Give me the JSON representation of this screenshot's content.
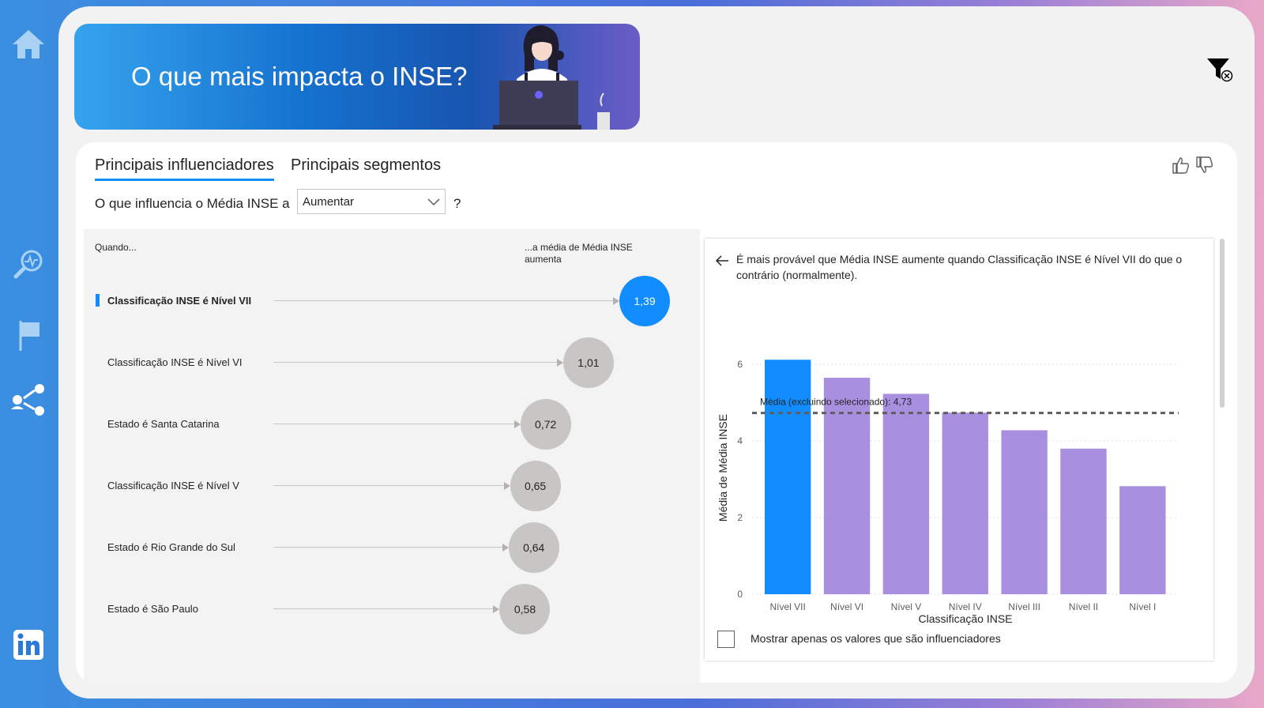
{
  "banner": {
    "title": "O que mais impacta o INSE?"
  },
  "sidebar": {
    "items": [
      {
        "name": "home-icon"
      },
      {
        "name": "analysis-icon"
      },
      {
        "name": "flag-icon"
      },
      {
        "name": "share-users-icon"
      },
      {
        "name": "linkedin-icon"
      }
    ]
  },
  "tabs": [
    {
      "label": "Principais influenciadores",
      "active": true
    },
    {
      "label": "Principais segmentos",
      "active": false
    }
  ],
  "question": {
    "prefix": "O que influencia o Média INSE a",
    "selected": "Aumentar",
    "suffix": "?"
  },
  "influencers": {
    "header_left": "Quando...",
    "header_right": "...a média de Média INSE aumenta",
    "rows": [
      {
        "label": "Classificação INSE é Nível VII",
        "value": "1,39",
        "num": 1.39,
        "selected": true
      },
      {
        "label": "Classificação INSE é Nível VI",
        "value": "1,01",
        "num": 1.01,
        "selected": false
      },
      {
        "label": "Estado é Santa Catarina",
        "value": "0,72",
        "num": 0.72,
        "selected": false
      },
      {
        "label": "Classificação INSE é Nível V",
        "value": "0,65",
        "num": 0.65,
        "selected": false
      },
      {
        "label": "Estado é Rio Grande do Sul",
        "value": "0,64",
        "num": 0.64,
        "selected": false
      },
      {
        "label": "Estado é São Paulo",
        "value": "0,58",
        "num": 0.58,
        "selected": false
      }
    ]
  },
  "detail": {
    "explanation": "É mais provável que Média INSE aumente quando Classificação INSE é Nível VII do que o contrário (normalmente).",
    "checkbox_label": "Mostrar apenas os valores que são influenciadores"
  },
  "chart_data": {
    "type": "bar",
    "categories": [
      "Nível VII",
      "Nível VI",
      "Nível V",
      "Nível IV",
      "Nível III",
      "Nível II",
      "Nível I"
    ],
    "values": [
      6.12,
      5.65,
      5.23,
      4.74,
      4.28,
      3.8,
      2.82
    ],
    "xlabel": "Classificação INSE",
    "ylabel": "Média de Média INSE",
    "ylim": [
      0,
      6.6
    ],
    "yticks": [
      0,
      2,
      4,
      6
    ],
    "highlight_index": 0,
    "reference_line": {
      "label": "Média (excluindo selecionado): 4,73",
      "value": 4.73
    },
    "colors": {
      "highlight": "#118dff",
      "default": "#a98fe0",
      "reference": "#605e5c"
    }
  }
}
